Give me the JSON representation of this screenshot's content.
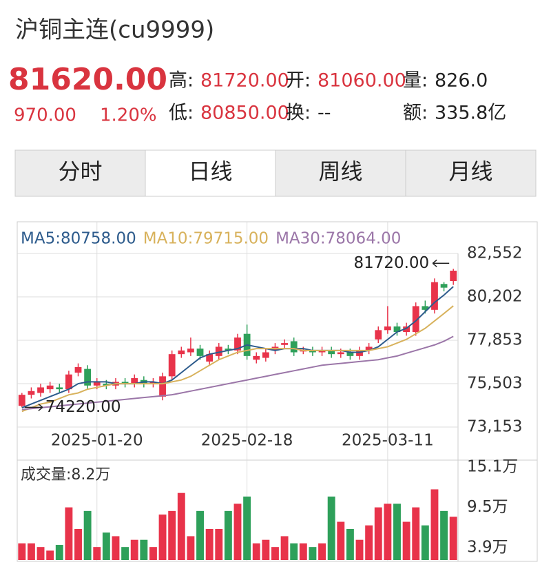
{
  "header": {
    "title": "沪铜主连(cu9999)",
    "price": "81620.00",
    "change": "970.00",
    "change_pct": "1.20%",
    "stats": [
      {
        "label": "高:",
        "value": "81720.00",
        "red": true
      },
      {
        "label": "开:",
        "value": "81060.00",
        "red": true
      },
      {
        "label": "量:",
        "value": "826.0",
        "red": false
      },
      {
        "label": "低:",
        "value": "80850.00",
        "red": true
      },
      {
        "label": "换:",
        "value": "--",
        "red": false
      },
      {
        "label": "额:",
        "value": "335.8亿",
        "red": false
      }
    ]
  },
  "tabs": [
    "分时",
    "日线",
    "周线",
    "月线"
  ],
  "selected_tab": 1,
  "chart_data": [
    {
      "type": "candlestick",
      "up_color": "#e8334a",
      "down_color": "#2ea05a",
      "grid": true,
      "categories": [
        null,
        null,
        null,
        null,
        null,
        null,
        null,
        null,
        "2025-01-20",
        null,
        null,
        null,
        null,
        null,
        null,
        null,
        null,
        null,
        null,
        null,
        null,
        null,
        null,
        null,
        "2025-02-18",
        null,
        null,
        null,
        null,
        null,
        null,
        null,
        null,
        null,
        null,
        null,
        null,
        null,
        null,
        "2025-03-11",
        null,
        null,
        null,
        null,
        null,
        null,
        null
      ],
      "open": [
        74300,
        74900,
        75000,
        75200,
        75300,
        75200,
        76100,
        76300,
        75400,
        75500,
        75400,
        75600,
        75500,
        75700,
        75500,
        74800,
        75900,
        77100,
        77200,
        77400,
        76700,
        77000,
        77400,
        77300,
        78200,
        76800,
        76900,
        77300,
        77600,
        77800,
        77300,
        77300,
        77200,
        77300,
        77100,
        77200,
        77000,
        77300,
        77900,
        78400,
        78600,
        78300,
        78300,
        79700,
        79500,
        80900,
        81060
      ],
      "close": [
        74900,
        75100,
        75300,
        75400,
        75200,
        76000,
        76400,
        75400,
        75600,
        75400,
        75600,
        75500,
        75800,
        75500,
        75600,
        75900,
        77100,
        77300,
        77400,
        77000,
        77100,
        77500,
        77300,
        78000,
        77000,
        77000,
        77200,
        77500,
        77700,
        77200,
        77300,
        77200,
        77300,
        77100,
        77200,
        77000,
        77300,
        77500,
        78400,
        78600,
        78300,
        78600,
        79700,
        79500,
        81000,
        80700,
        81620
      ],
      "high": [
        75000,
        75300,
        75500,
        75600,
        75500,
        76200,
        76600,
        76500,
        75800,
        75700,
        75800,
        75800,
        76000,
        75900,
        75800,
        76100,
        77300,
        77500,
        78000,
        77600,
        77300,
        77700,
        77600,
        78200,
        78700,
        77200,
        77400,
        77700,
        77900,
        78000,
        77500,
        77500,
        77500,
        77500,
        77400,
        77400,
        77500,
        77700,
        78600,
        79700,
        78800,
        78800,
        79900,
        80000,
        81200,
        81000,
        81720
      ],
      "low": [
        74220,
        74700,
        74800,
        75000,
        75000,
        75000,
        75900,
        75200,
        75200,
        75200,
        75200,
        75300,
        75300,
        75300,
        75300,
        74600,
        75700,
        76900,
        77000,
        76800,
        76500,
        76800,
        77100,
        77100,
        76800,
        76600,
        76700,
        77100,
        77400,
        77000,
        77100,
        77000,
        77000,
        76900,
        76900,
        76800,
        76800,
        77100,
        77700,
        78200,
        78100,
        78100,
        78100,
        79300,
        79300,
        80500,
        80850
      ],
      "series": [
        {
          "name": "MA5:80758.00",
          "color": "#2d5b8c",
          "values": [
            74200,
            74400,
            74600,
            74800,
            75000,
            75200,
            75500,
            75600,
            75600,
            75600,
            75500,
            75500,
            75500,
            75600,
            75600,
            75500,
            75700,
            76100,
            76500,
            76900,
            77100,
            77200,
            77300,
            77400,
            77600,
            77500,
            77400,
            77300,
            77400,
            77400,
            77400,
            77300,
            77300,
            77300,
            77300,
            77200,
            77200,
            77300,
            77500,
            77900,
            78300,
            78500,
            78900,
            79400,
            79900,
            80300,
            80758
          ]
        },
        {
          "name": "MA10:79715.00",
          "color": "#d8b25c",
          "values": [
            74000,
            74200,
            74400,
            74500,
            74700,
            74900,
            75000,
            75200,
            75300,
            75400,
            75500,
            75500,
            75500,
            75500,
            75500,
            75500,
            75600,
            75700,
            75900,
            76200,
            76500,
            76800,
            77000,
            77200,
            77300,
            77400,
            77400,
            77400,
            77400,
            77400,
            77300,
            77300,
            77300,
            77300,
            77300,
            77300,
            77300,
            77300,
            77400,
            77500,
            77700,
            77900,
            78200,
            78500,
            78900,
            79300,
            79715
          ]
        },
        {
          "name": "MA30:78064.00",
          "color": "#9b76a8",
          "values": [
            74100,
            74150,
            74200,
            74250,
            74300,
            74350,
            74400,
            74450,
            74500,
            74550,
            74600,
            74650,
            74700,
            74750,
            74800,
            74850,
            74900,
            75000,
            75100,
            75200,
            75300,
            75400,
            75500,
            75600,
            75700,
            75800,
            75900,
            76000,
            76100,
            76200,
            76300,
            76400,
            76500,
            76550,
            76600,
            76650,
            76700,
            76750,
            76800,
            76900,
            77000,
            77150,
            77300,
            77450,
            77600,
            77800,
            78064
          ]
        }
      ],
      "ylim": [
        73153,
        82552
      ],
      "yticks": [
        {
          "value": 73153,
          "label": "73,153"
        },
        {
          "value": 75503,
          "label": "75,503"
        },
        {
          "value": 77853,
          "label": "77,853"
        },
        {
          "value": 80202,
          "label": "80,202"
        },
        {
          "value": 82552,
          "label": "82,552"
        }
      ],
      "max_label": "81720.00",
      "min_label": "74220.00"
    },
    {
      "type": "bar",
      "title": "成交量:8.2万",
      "values": [
        4.5,
        4.5,
        4.0,
        3.5,
        4.3,
        9.5,
        6.5,
        9.0,
        4.0,
        6.0,
        5.5,
        4.0,
        5.0,
        5.0,
        4.0,
        8.5,
        9.0,
        11.5,
        5.5,
        9.0,
        6.5,
        6.5,
        9.0,
        10.0,
        11.0,
        4.5,
        5.0,
        4.0,
        5.5,
        4.5,
        4.5,
        4.0,
        4.5,
        11.0,
        7.5,
        6.5,
        5.0,
        7.0,
        9.5,
        10.0,
        10.0,
        7.5,
        9.5,
        7.0,
        12.0,
        9.0,
        8.2
      ],
      "ylim": [
        2.2,
        15.1
      ],
      "yticks": [
        {
          "value": 3.9,
          "label": "3.9万"
        },
        {
          "value": 9.5,
          "label": "9.5万"
        },
        {
          "value": 15.1,
          "label": "15.1万"
        }
      ]
    }
  ]
}
